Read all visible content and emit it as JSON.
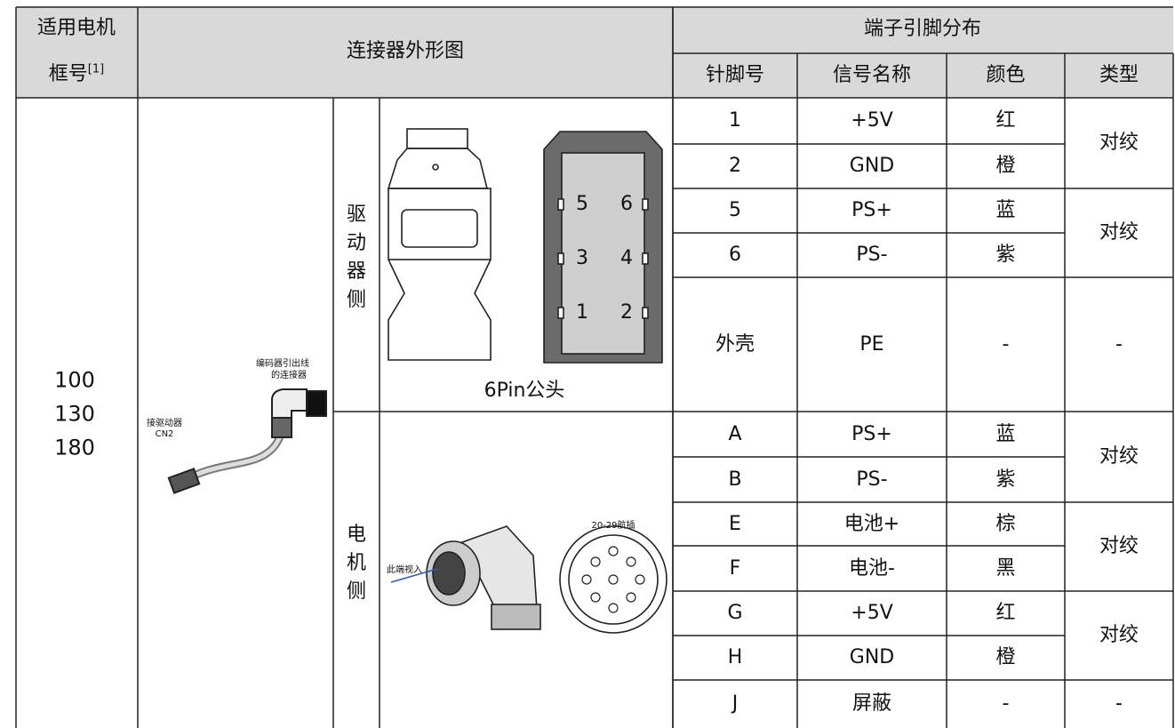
{
  "header": {
    "motor_frame": "适用电机",
    "frame_no": "框号",
    "footnote": "[1]",
    "connector_shape": "连接器外形图",
    "pin_distribution": "端子引脚分布",
    "columns": [
      "针脚号",
      "信号名称",
      "颜色",
      "类型"
    ]
  },
  "motor_frames": [
    "100",
    "130",
    "180"
  ],
  "cable_labels": {
    "encoder": [
      "编码器引出线",
      "的连接器"
    ],
    "driver": [
      "接驱动器",
      "CN2"
    ]
  },
  "driver_side": {
    "label": "驱动器侧",
    "caption": "6Pin公头",
    "pins": [
      "5",
      "6",
      "3",
      "4",
      "1",
      "2"
    ],
    "groups": [
      {
        "type": "对绞",
        "rows": [
          [
            "1",
            "+5V",
            "红"
          ],
          [
            "2",
            "GND",
            "橙"
          ]
        ]
      },
      {
        "type": "对绞",
        "rows": [
          [
            "5",
            "PS+",
            "蓝"
          ],
          [
            "6",
            "PS-",
            "紫"
          ]
        ]
      },
      {
        "type": "-",
        "rows": [
          [
            "外壳",
            "PE",
            "-"
          ]
        ]
      }
    ]
  },
  "motor_side": {
    "label": "电机侧",
    "connector_title": "20-29航插",
    "view_note": "此端视入",
    "groups": [
      {
        "type": "对绞",
        "rows": [
          [
            "A",
            "PS+",
            "蓝"
          ],
          [
            "B",
            "PS-",
            "紫"
          ]
        ]
      },
      {
        "type": "对绞",
        "rows": [
          [
            "E",
            "电池+",
            "棕"
          ],
          [
            "F",
            "电池-",
            "黑"
          ]
        ]
      },
      {
        "type": "对绞",
        "rows": [
          [
            "G",
            "+5V",
            "红"
          ],
          [
            "H",
            "GND",
            "橙"
          ]
        ]
      },
      {
        "type": "-",
        "rows": [
          [
            "J",
            "屏蔽",
            "-"
          ]
        ]
      }
    ]
  }
}
